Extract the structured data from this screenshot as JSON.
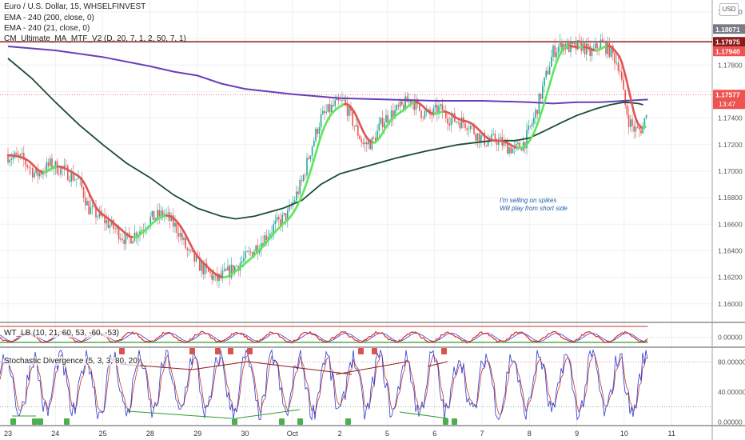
{
  "header": {
    "symbol_line": "Euro / U.S. Dollar, 15, WHSELFINVEST",
    "indicator_1": "EMA - 240 (200, close, 0)",
    "indicator_2": "EMA - 240 (21, close, 0)",
    "indicator_3": "CM_Ultimate_MA_MTF_V2 (D, 20, 7, 1, 2, 50, 7, 1)",
    "currency_button": "USD"
  },
  "annotation": {
    "line1": "I'm selling on spikes",
    "line2": "Will play from short side"
  },
  "price_labels": {
    "label_a": "1.18071",
    "label_b": "1.17975",
    "label_c": "1.17940",
    "current_price": "1.17577",
    "countdown": "13:47"
  },
  "colors": {
    "resistance_line": "#8b1a1a",
    "ema200": "#6a3db8",
    "ema21": "#1b4d32",
    "ma_up": "#5ce65c",
    "ma_down": "#e05555",
    "candle_up": "#26a69a",
    "candle_down": "#ef5350",
    "stoch_k": "#2e3bd6",
    "stoch_d": "#c0392b",
    "wt_fast": "#d93025",
    "wt_slow": "#3b3bd9",
    "current_price_bg": "#ef5350"
  },
  "chart_data": [
    {
      "type": "candlestick",
      "pane": "main",
      "series": [
        {
          "name": "EUR/USD 15m"
        },
        {
          "name": "EMA - 240 (200, close, 0)"
        },
        {
          "name": "EMA - 240 (21, close, 0)"
        },
        {
          "name": "CM_Ultimate_MA_MTF_V2"
        }
      ],
      "x_ticks": [
        "23",
        "24",
        "25",
        "28",
        "29",
        "30",
        "Oct",
        "2",
        "5",
        "6",
        "7",
        "8",
        "9",
        "10",
        "11"
      ],
      "y_ticks": [
        "1.18200",
        "1.17800",
        "1.17400",
        "1.17200",
        "1.17000",
        "1.16800",
        "1.16600",
        "1.16400",
        "1.16200",
        "1.16000"
      ],
      "ylim": [
        1.1586,
        1.1829
      ],
      "horizontal_line": 1.17975,
      "current_price": 1.17577,
      "price_path": [
        [
          0.0,
          1.1712
        ],
        [
          0.3,
          1.1709
        ],
        [
          0.6,
          1.1697
        ],
        [
          0.9,
          1.1705
        ],
        [
          1.2,
          1.17
        ],
        [
          1.5,
          1.1693
        ],
        [
          1.7,
          1.1672
        ],
        [
          2.0,
          1.1664
        ],
        [
          2.3,
          1.1655
        ],
        [
          2.5,
          1.1648
        ],
        [
          2.8,
          1.1656
        ],
        [
          3.0,
          1.1664
        ],
        [
          3.3,
          1.1668
        ],
        [
          3.6,
          1.1655
        ],
        [
          3.8,
          1.1638
        ],
        [
          4.1,
          1.1627
        ],
        [
          4.4,
          1.1618
        ],
        [
          4.7,
          1.1625
        ],
        [
          5.0,
          1.1634
        ],
        [
          5.3,
          1.1645
        ],
        [
          5.6,
          1.1658
        ],
        [
          5.9,
          1.1667
        ],
        [
          6.2,
          1.1692
        ],
        [
          6.4,
          1.1718
        ],
        [
          6.6,
          1.174
        ],
        [
          6.9,
          1.175
        ],
        [
          7.1,
          1.1752
        ],
        [
          7.3,
          1.1735
        ],
        [
          7.5,
          1.172
        ],
        [
          7.7,
          1.1722
        ],
        [
          7.9,
          1.1738
        ],
        [
          8.1,
          1.1743
        ],
        [
          8.3,
          1.1748
        ],
        [
          8.5,
          1.1755
        ],
        [
          8.7,
          1.1745
        ],
        [
          8.9,
          1.1742
        ],
        [
          9.1,
          1.1747
        ],
        [
          9.3,
          1.174
        ],
        [
          9.5,
          1.1738
        ],
        [
          9.7,
          1.1736
        ],
        [
          9.9,
          1.1727
        ],
        [
          10.1,
          1.1722
        ],
        [
          10.3,
          1.1724
        ],
        [
          10.5,
          1.1719
        ],
        [
          10.7,
          1.1716
        ],
        [
          10.9,
          1.1722
        ],
        [
          11.1,
          1.174
        ],
        [
          11.3,
          1.1765
        ],
        [
          11.5,
          1.179
        ],
        [
          11.7,
          1.1796
        ],
        [
          11.9,
          1.1792
        ],
        [
          12.1,
          1.1795
        ],
        [
          12.3,
          1.1788
        ],
        [
          12.5,
          1.1797
        ],
        [
          12.7,
          1.1791
        ],
        [
          12.9,
          1.1779
        ],
        [
          13.0,
          1.1753
        ],
        [
          13.1,
          1.1738
        ],
        [
          13.2,
          1.1732
        ],
        [
          13.3,
          1.173
        ],
        [
          13.4,
          1.1734
        ],
        [
          13.45,
          1.1741
        ],
        [
          13.5,
          1.17577
        ]
      ],
      "ema200_path": [
        [
          0.0,
          1.1794
        ],
        [
          1.0,
          1.1791
        ],
        [
          2.0,
          1.1786
        ],
        [
          3.0,
          1.1779
        ],
        [
          3.5,
          1.1775
        ],
        [
          4.0,
          1.1772
        ],
        [
          4.5,
          1.1766
        ],
        [
          5.0,
          1.1762
        ],
        [
          6.0,
          1.1758
        ],
        [
          7.0,
          1.1755
        ],
        [
          8.0,
          1.1754
        ],
        [
          9.0,
          1.1753
        ],
        [
          10.0,
          1.1753
        ],
        [
          11.0,
          1.1752
        ],
        [
          11.5,
          1.1751
        ],
        [
          12.0,
          1.1752
        ],
        [
          12.5,
          1.1752
        ],
        [
          13.0,
          1.1753
        ],
        [
          13.5,
          1.1754
        ]
      ],
      "ema21_path": [
        [
          0.0,
          1.1785
        ],
        [
          0.5,
          1.177
        ],
        [
          1.0,
          1.1752
        ],
        [
          1.5,
          1.1735
        ],
        [
          2.0,
          1.172
        ],
        [
          2.5,
          1.1706
        ],
        [
          3.0,
          1.1695
        ],
        [
          3.5,
          1.1682
        ],
        [
          4.0,
          1.1672
        ],
        [
          4.5,
          1.1666
        ],
        [
          4.8,
          1.1664
        ],
        [
          5.2,
          1.1666
        ],
        [
          5.8,
          1.1672
        ],
        [
          6.2,
          1.1678
        ],
        [
          6.6,
          1.169
        ],
        [
          7.0,
          1.1698
        ],
        [
          7.4,
          1.1702
        ],
        [
          7.8,
          1.1706
        ],
        [
          8.2,
          1.171
        ],
        [
          8.8,
          1.1715
        ],
        [
          9.5,
          1.172
        ],
        [
          10.2,
          1.1723
        ],
        [
          10.7,
          1.1723
        ],
        [
          11.0,
          1.1725
        ],
        [
          11.3,
          1.173
        ],
        [
          11.7,
          1.1737
        ],
        [
          12.0,
          1.1742
        ],
        [
          12.4,
          1.1747
        ],
        [
          12.7,
          1.175
        ],
        [
          13.0,
          1.1752
        ],
        [
          13.3,
          1.1751
        ],
        [
          13.4,
          1.175
        ]
      ]
    },
    {
      "type": "line",
      "pane": "wt_lb",
      "title": "WT_LB (10, 21, 60, 53, -60, -53)",
      "y_ticks": [
        "0.00000"
      ],
      "series": [
        {
          "name": "WT_LB fast"
        },
        {
          "name": "WT_LB slow"
        }
      ]
    },
    {
      "type": "line",
      "pane": "stochastic",
      "title": "Stochastic Divergence (5, 3, 3, 80, 20)",
      "y_ticks": [
        "80.00000",
        "40.00000",
        "0.00000"
      ],
      "ylim": [
        -5,
        100
      ],
      "levels": [
        80,
        20
      ],
      "series": [
        {
          "name": "%K"
        },
        {
          "name": "%D"
        }
      ]
    }
  ]
}
